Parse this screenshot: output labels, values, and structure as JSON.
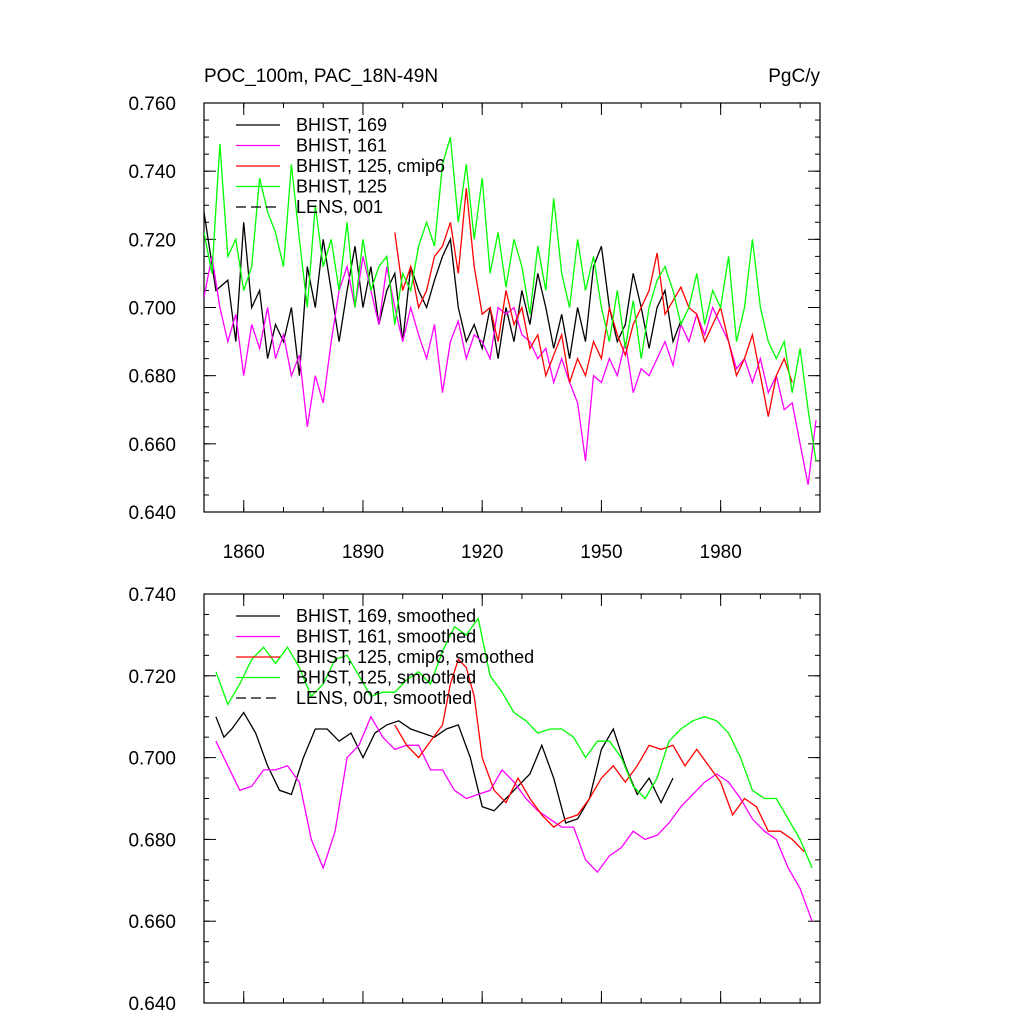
{
  "figure": {
    "title_left": "POC_100m, PAC_18N-49N",
    "title_right": "PgC/y"
  },
  "colors": {
    "BHIST_169": "#000000",
    "BHIST_161": "#ff00ff",
    "BHIST_125_cmip6": "#ff0000",
    "BHIST_125": "#00ff00",
    "LENS_001": "#000000"
  },
  "chart_data": [
    {
      "type": "line",
      "title": "POC_100m, PAC_18N-49N",
      "units_label": "PgC/y",
      "xlabel": "",
      "ylabel": "",
      "xlim": [
        1850,
        2005
      ],
      "ylim": [
        0.64,
        0.76
      ],
      "x_ticks": [
        1860,
        1890,
        1920,
        1950,
        1980
      ],
      "x_tick_labels": [
        "1860",
        "1890",
        "1920",
        "1950",
        "1980"
      ],
      "y_ticks": [
        0.64,
        0.66,
        0.68,
        0.7,
        0.72,
        0.74,
        0.76
      ],
      "y_tick_labels": [
        "0.640",
        "0.660",
        "0.680",
        "0.700",
        "0.720",
        "0.740",
        "0.760"
      ],
      "legend_position": "top-left",
      "series": [
        {
          "name": "BHIST, 169",
          "color": "#000000",
          "dash": "solid",
          "x": [
            1850,
            1853,
            1856,
            1858,
            1860,
            1862,
            1864,
            1866,
            1868,
            1870,
            1872,
            1874,
            1876,
            1878,
            1880,
            1882,
            1884,
            1886,
            1888,
            1890,
            1892,
            1894,
            1896,
            1898,
            1900,
            1902,
            1904,
            1906,
            1908,
            1910,
            1912,
            1914,
            1916,
            1918,
            1920,
            1922,
            1924,
            1926,
            1928,
            1930,
            1932,
            1934,
            1936,
            1938,
            1940,
            1942,
            1944,
            1946,
            1948,
            1950,
            1952,
            1954,
            1956,
            1958,
            1960,
            1962,
            1964,
            1966,
            1968,
            1970
          ],
          "y": [
            0.728,
            0.705,
            0.708,
            0.69,
            0.725,
            0.7,
            0.705,
            0.685,
            0.695,
            0.69,
            0.7,
            0.68,
            0.712,
            0.7,
            0.72,
            0.705,
            0.69,
            0.705,
            0.718,
            0.7,
            0.712,
            0.695,
            0.705,
            0.71,
            0.69,
            0.712,
            0.705,
            0.7,
            0.708,
            0.715,
            0.72,
            0.7,
            0.69,
            0.695,
            0.688,
            0.7,
            0.685,
            0.7,
            0.69,
            0.705,
            0.695,
            0.71,
            0.7,
            0.688,
            0.698,
            0.685,
            0.7,
            0.69,
            0.712,
            0.718,
            0.7,
            0.69,
            0.695,
            0.71,
            0.7,
            0.688,
            0.7,
            0.705,
            0.69,
            0.696
          ]
        },
        {
          "name": "BHIST, 161",
          "color": "#ff00ff",
          "dash": "solid",
          "x": [
            1850,
            1852,
            1854,
            1856,
            1858,
            1860,
            1862,
            1864,
            1866,
            1868,
            1870,
            1872,
            1874,
            1876,
            1878,
            1880,
            1882,
            1884,
            1886,
            1888,
            1890,
            1892,
            1894,
            1896,
            1898,
            1900,
            1902,
            1904,
            1906,
            1908,
            1910,
            1912,
            1914,
            1916,
            1918,
            1920,
            1922,
            1924,
            1926,
            1928,
            1930,
            1932,
            1934,
            1936,
            1938,
            1940,
            1942,
            1944,
            1946,
            1948,
            1950,
            1952,
            1954,
            1956,
            1958,
            1960,
            1962,
            1964,
            1966,
            1968,
            1970,
            1972,
            1974,
            1976,
            1978,
            1980,
            1982,
            1984,
            1986,
            1988,
            1990,
            1992,
            1994,
            1996,
            1998,
            2000,
            2002,
            2004
          ],
          "y": [
            0.703,
            0.715,
            0.7,
            0.69,
            0.698,
            0.68,
            0.695,
            0.688,
            0.7,
            0.685,
            0.692,
            0.68,
            0.686,
            0.665,
            0.68,
            0.672,
            0.69,
            0.705,
            0.712,
            0.7,
            0.715,
            0.705,
            0.695,
            0.712,
            0.7,
            0.69,
            0.7,
            0.692,
            0.685,
            0.695,
            0.675,
            0.69,
            0.696,
            0.685,
            0.692,
            0.69,
            0.685,
            0.7,
            0.698,
            0.7,
            0.692,
            0.69,
            0.685,
            0.688,
            0.678,
            0.685,
            0.678,
            0.672,
            0.655,
            0.68,
            0.678,
            0.685,
            0.68,
            0.69,
            0.675,
            0.682,
            0.68,
            0.685,
            0.69,
            0.683,
            0.695,
            0.69,
            0.698,
            0.692,
            0.7,
            0.695,
            0.69,
            0.682,
            0.685,
            0.678,
            0.685,
            0.675,
            0.68,
            0.67,
            0.672,
            0.66,
            0.648,
            0.667
          ]
        },
        {
          "name": "BHIST, 125, cmip6",
          "color": "#ff0000",
          "dash": "solid",
          "x": [
            1898,
            1900,
            1902,
            1904,
            1906,
            1908,
            1910,
            1912,
            1914,
            1916,
            1918,
            1920,
            1922,
            1924,
            1926,
            1928,
            1930,
            1932,
            1934,
            1936,
            1938,
            1940,
            1942,
            1944,
            1946,
            1948,
            1950,
            1952,
            1954,
            1956,
            1958,
            1960,
            1962,
            1964,
            1966,
            1968,
            1970,
            1972,
            1974,
            1976,
            1978,
            1980,
            1982,
            1984,
            1986,
            1988,
            1990,
            1992,
            1994,
            1996,
            1998
          ],
          "y": [
            0.722,
            0.705,
            0.712,
            0.7,
            0.705,
            0.715,
            0.718,
            0.725,
            0.71,
            0.735,
            0.712,
            0.698,
            0.7,
            0.69,
            0.705,
            0.695,
            0.7,
            0.688,
            0.692,
            0.68,
            0.686,
            0.692,
            0.678,
            0.685,
            0.68,
            0.69,
            0.685,
            0.7,
            0.692,
            0.686,
            0.695,
            0.7,
            0.705,
            0.716,
            0.698,
            0.702,
            0.706,
            0.7,
            0.698,
            0.69,
            0.695,
            0.7,
            0.69,
            0.68,
            0.685,
            0.692,
            0.68,
            0.668,
            0.68,
            0.685,
            0.678
          ]
        },
        {
          "name": "BHIST, 125",
          "color": "#00ff00",
          "dash": "solid",
          "x": [
            1850,
            1852,
            1854,
            1856,
            1858,
            1860,
            1862,
            1864,
            1866,
            1868,
            1870,
            1872,
            1874,
            1876,
            1878,
            1880,
            1882,
            1884,
            1886,
            1888,
            1890,
            1892,
            1894,
            1896,
            1898,
            1900,
            1902,
            1904,
            1906,
            1908,
            1910,
            1912,
            1914,
            1916,
            1918,
            1920,
            1922,
            1924,
            1926,
            1928,
            1930,
            1932,
            1934,
            1936,
            1938,
            1940,
            1942,
            1944,
            1946,
            1948,
            1950,
            1952,
            1954,
            1956,
            1958,
            1960,
            1962,
            1964,
            1966,
            1968,
            1970,
            1972,
            1974,
            1976,
            1978,
            1980,
            1982,
            1984,
            1986,
            1988,
            1990,
            1992,
            1994,
            1996,
            1998,
            2000,
            2002,
            2004
          ],
          "y": [
            0.722,
            0.71,
            0.748,
            0.715,
            0.72,
            0.705,
            0.712,
            0.738,
            0.728,
            0.722,
            0.712,
            0.742,
            0.72,
            0.7,
            0.73,
            0.712,
            0.72,
            0.705,
            0.725,
            0.7,
            0.72,
            0.705,
            0.712,
            0.715,
            0.695,
            0.71,
            0.705,
            0.718,
            0.725,
            0.718,
            0.742,
            0.75,
            0.725,
            0.742,
            0.72,
            0.738,
            0.71,
            0.722,
            0.706,
            0.72,
            0.712,
            0.698,
            0.718,
            0.705,
            0.732,
            0.71,
            0.7,
            0.72,
            0.705,
            0.715,
            0.7,
            0.69,
            0.705,
            0.688,
            0.702,
            0.685,
            0.7,
            0.708,
            0.712,
            0.705,
            0.695,
            0.7,
            0.71,
            0.695,
            0.705,
            0.7,
            0.715,
            0.69,
            0.7,
            0.72,
            0.7,
            0.69,
            0.685,
            0.69,
            0.675,
            0.688,
            0.67,
            0.655
          ]
        },
        {
          "name": "LENS, 001",
          "color": "#000000",
          "dash": "dashed",
          "x": [],
          "y": []
        }
      ]
    },
    {
      "type": "line",
      "title": "",
      "xlabel": "",
      "ylabel": "",
      "xlim": [
        1850,
        2005
      ],
      "ylim": [
        0.64,
        0.74
      ],
      "x_ticks": [
        1860,
        1890,
        1920,
        1950,
        1980
      ],
      "y_ticks": [
        0.64,
        0.66,
        0.68,
        0.7,
        0.72,
        0.74
      ],
      "y_tick_labels": [
        "0.640",
        "0.660",
        "0.680",
        "0.700",
        "0.720",
        "0.740"
      ],
      "legend_position": "top-left",
      "series": [
        {
          "name": "BHIST, 169, smoothed",
          "color": "#000000",
          "dash": "solid",
          "x": [
            1853,
            1855,
            1857,
            1860,
            1863,
            1866,
            1869,
            1872,
            1875,
            1878,
            1881,
            1884,
            1887,
            1890,
            1893,
            1896,
            1899,
            1902,
            1905,
            1908,
            1911,
            1914,
            1917,
            1920,
            1923,
            1926,
            1929,
            1932,
            1935,
            1938,
            1941,
            1944,
            1947,
            1950,
            1953,
            1956,
            1959,
            1962,
            1965,
            1968
          ],
          "y": [
            0.71,
            0.705,
            0.707,
            0.711,
            0.706,
            0.698,
            0.692,
            0.691,
            0.7,
            0.707,
            0.707,
            0.704,
            0.706,
            0.7,
            0.706,
            0.708,
            0.709,
            0.707,
            0.706,
            0.705,
            0.707,
            0.708,
            0.7,
            0.688,
            0.687,
            0.69,
            0.693,
            0.696,
            0.703,
            0.695,
            0.684,
            0.685,
            0.69,
            0.702,
            0.707,
            0.698,
            0.691,
            0.695,
            0.689,
            0.695
          ]
        },
        {
          "name": "BHIST, 161, smoothed",
          "color": "#ff00ff",
          "dash": "solid",
          "x": [
            1853,
            1856,
            1859,
            1862,
            1865,
            1868,
            1871,
            1874,
            1877,
            1880,
            1883,
            1886,
            1889,
            1892,
            1895,
            1898,
            1901,
            1904,
            1907,
            1910,
            1913,
            1916,
            1919,
            1922,
            1925,
            1928,
            1931,
            1934,
            1937,
            1940,
            1943,
            1946,
            1949,
            1952,
            1955,
            1958,
            1961,
            1964,
            1967,
            1970,
            1973,
            1976,
            1979,
            1982,
            1985,
            1988,
            1991,
            1994,
            1997,
            2000,
            2003
          ],
          "y": [
            0.704,
            0.698,
            0.692,
            0.693,
            0.697,
            0.697,
            0.698,
            0.694,
            0.68,
            0.673,
            0.682,
            0.7,
            0.703,
            0.71,
            0.705,
            0.702,
            0.703,
            0.703,
            0.697,
            0.697,
            0.692,
            0.69,
            0.691,
            0.692,
            0.697,
            0.694,
            0.69,
            0.687,
            0.685,
            0.683,
            0.683,
            0.675,
            0.672,
            0.676,
            0.678,
            0.682,
            0.68,
            0.681,
            0.684,
            0.688,
            0.691,
            0.694,
            0.696,
            0.694,
            0.69,
            0.685,
            0.682,
            0.68,
            0.673,
            0.668,
            0.66
          ]
        },
        {
          "name": "BHIST, 125, cmip6, smoothed",
          "color": "#ff0000",
          "dash": "solid",
          "x": [
            1898,
            1901,
            1904,
            1907,
            1910,
            1912,
            1914,
            1916,
            1918,
            1920,
            1923,
            1926,
            1929,
            1932,
            1935,
            1938,
            1941,
            1944,
            1947,
            1950,
            1953,
            1956,
            1959,
            1962,
            1965,
            1968,
            1971,
            1974,
            1977,
            1980,
            1983,
            1986,
            1989,
            1992,
            1995,
            1998,
            2001
          ],
          "y": [
            0.708,
            0.703,
            0.7,
            0.704,
            0.708,
            0.718,
            0.724,
            0.722,
            0.715,
            0.7,
            0.692,
            0.689,
            0.695,
            0.69,
            0.686,
            0.683,
            0.685,
            0.686,
            0.69,
            0.695,
            0.698,
            0.694,
            0.698,
            0.703,
            0.702,
            0.703,
            0.698,
            0.702,
            0.698,
            0.694,
            0.686,
            0.69,
            0.688,
            0.682,
            0.682,
            0.68,
            0.677
          ]
        },
        {
          "name": "BHIST, 125, smoothed",
          "color": "#00ff00",
          "dash": "solid",
          "x": [
            1853,
            1856,
            1859,
            1862,
            1865,
            1868,
            1871,
            1874,
            1877,
            1880,
            1883,
            1886,
            1889,
            1892,
            1895,
            1898,
            1901,
            1904,
            1907,
            1910,
            1913,
            1916,
            1919,
            1922,
            1925,
            1928,
            1931,
            1934,
            1937,
            1940,
            1943,
            1946,
            1949,
            1952,
            1955,
            1958,
            1961,
            1964,
            1967,
            1970,
            1973,
            1976,
            1979,
            1982,
            1985,
            1988,
            1991,
            1994,
            1997,
            2000,
            2003
          ],
          "y": [
            0.721,
            0.713,
            0.718,
            0.724,
            0.727,
            0.723,
            0.727,
            0.722,
            0.715,
            0.718,
            0.724,
            0.725,
            0.72,
            0.715,
            0.716,
            0.716,
            0.719,
            0.721,
            0.718,
            0.726,
            0.732,
            0.73,
            0.734,
            0.72,
            0.716,
            0.711,
            0.709,
            0.706,
            0.707,
            0.707,
            0.705,
            0.7,
            0.704,
            0.704,
            0.7,
            0.693,
            0.69,
            0.695,
            0.704,
            0.707,
            0.709,
            0.71,
            0.709,
            0.706,
            0.7,
            0.692,
            0.69,
            0.69,
            0.685,
            0.68,
            0.673
          ]
        },
        {
          "name": "LENS, 001, smoothed",
          "color": "#000000",
          "dash": "dashed",
          "x": [],
          "y": []
        }
      ]
    }
  ]
}
